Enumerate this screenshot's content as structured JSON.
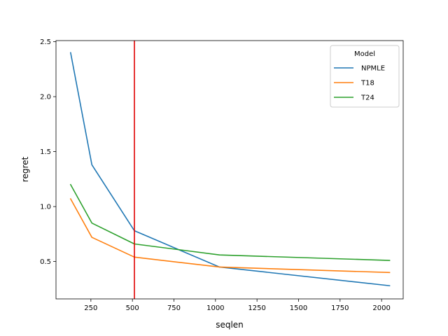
{
  "chart_data": {
    "type": "line",
    "title": "",
    "xlabel": "seqlen",
    "ylabel": "regret",
    "xlim": [
      40,
      2130
    ],
    "ylim": [
      0.16,
      2.51
    ],
    "xticks": [
      250,
      500,
      750,
      1000,
      1250,
      1500,
      1750,
      2000
    ],
    "yticks": [
      0.5,
      1.0,
      1.5,
      2.0,
      2.5
    ],
    "ytick_labels": [
      "0.5",
      "1.0",
      "1.5",
      "2.0",
      "2.5"
    ],
    "grid": false,
    "legend": {
      "title": "Model",
      "placement": "top-right"
    },
    "vline": {
      "x": 512,
      "color": "#e00000"
    },
    "x": [
      128,
      256,
      512,
      1024,
      2048
    ],
    "series": [
      {
        "name": "NPMLE",
        "color": "#1f77b4",
        "values": [
          2.4,
          1.38,
          0.78,
          0.45,
          0.28
        ]
      },
      {
        "name": "T18",
        "color": "#ff7f0e",
        "values": [
          1.07,
          0.72,
          0.54,
          0.45,
          0.4
        ]
      },
      {
        "name": "T24",
        "color": "#2ca02c",
        "values": [
          1.2,
          0.85,
          0.66,
          0.56,
          0.51
        ]
      }
    ]
  }
}
